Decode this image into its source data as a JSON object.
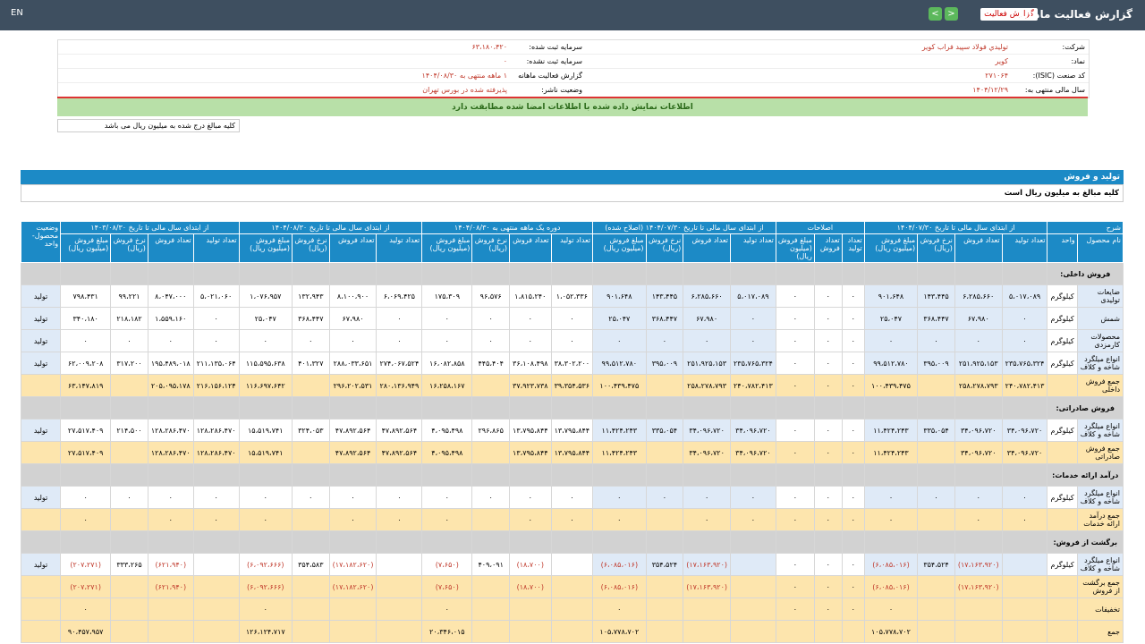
{
  "topbar": {
    "lang": "EN",
    "title": "گزارش فعالیت ماهانه",
    "dropdown": "گزارش فعالیت"
  },
  "info": {
    "rows": [
      [
        "شرکت:",
        "توليدي فولاد سپيد فراب كوير",
        "سرمایه ثبت شده:",
        "۶۳،۱۸۰،۴۲۰"
      ],
      [
        "نماد:",
        "کویر",
        "سرمایه ثبت نشده:",
        "۰"
      ],
      [
        "کد صنعت (ISIC):",
        "۲۷۱۰۶۴",
        "گزارش فعالیت ماهانه",
        "۱ ماهه منتهی به ۱۴۰۴/۰۸/۳۰"
      ],
      [
        "سال مالی منتهی به:",
        "۱۴۰۴/۱۲/۲۹",
        "وضعیت ناشر:",
        "پذیرفته شده در بورس تهران"
      ]
    ]
  },
  "banner": "اطلاعات نمایش داده شده با اطلاعات امضا شده مطابقت دارد",
  "note": "کلیه مبالغ درج شده به میلیون ریال می باشد",
  "section": {
    "title": "تولید و فروش",
    "subtitle": "کلیه مبالغ به میلیون ریال است"
  },
  "table": {
    "desc": "شرح",
    "name_col": "نام محصول",
    "unit_col": "واحد",
    "status_col": "وضعیت محصول- واحد",
    "groups": [
      {
        "title": "از ابتدای سال مالی تا تاریخ ۱۴۰۴/۰۷/۳۰",
        "columns": [
          "تعداد تولید",
          "تعداد فروش",
          "نرخ فروش (ریال)",
          "مبلغ فروش (میلیون ریال)"
        ]
      },
      {
        "title": "اصلاحات",
        "columns": [
          "تعداد تولید",
          "تعداد فروش",
          "مبلغ فروش (میلیون ریال)"
        ]
      },
      {
        "title": "از ابتدای سال مالی تا تاریخ ۱۴۰۴/۰۷/۳۰ (اصلاح شده)",
        "columns": [
          "تعداد تولید",
          "تعداد فروش",
          "نرخ فروش (ریال)",
          "مبلغ فروش (میلیون ریال)"
        ]
      },
      {
        "title": "دوره یک ماهه منتهی به ۱۴۰۴/۰۸/۳۰",
        "columns": [
          "تعداد تولید",
          "تعداد فروش",
          "نرخ فروش (ریال)",
          "مبلغ فروش (میلیون ریال)"
        ]
      },
      {
        "title": "از ابتدای سال مالی تا تاریخ ۱۴۰۴/۰۸/۳۰",
        "columns": [
          "تعداد تولید",
          "تعداد فروش",
          "نرخ فروش (ریال)",
          "مبلغ فروش (میلیون ریال)"
        ]
      },
      {
        "title": "از ابتدای سال مالی تا تاریخ ۱۴۰۳/۰۸/۳۰",
        "columns": [
          "تعداد تولید",
          "تعداد فروش",
          "نرخ فروش (ریال)",
          "مبلغ فروش (میلیون ریال)"
        ]
      }
    ],
    "rows": [
      [
        "فروش داخلی:"
      ],
      [
        "ضایعات تولیدی",
        "کیلوگرم",
        "۵،۰۱۷،۰۸۹",
        "۶،۲۸۵،۶۶۰",
        "۱۴۳،۴۴۵",
        "۹۰۱،۶۴۸",
        "۰",
        "۰",
        "۰",
        "۵،۰۱۷،۰۸۹",
        "۶،۲۸۵،۶۶۰",
        "۱۴۳،۴۴۵",
        "۹۰۱،۶۴۸",
        "۱،۰۵۲،۳۳۶",
        "۱،۸۱۵،۲۴۰",
        "۹۶،۵۷۶",
        "۱۷۵،۳۰۹",
        "۶،۰۶۹،۴۲۵",
        "۸،۱۰۰،۹۰۰",
        "۱۳۲،۹۴۳",
        "۱،۰۷۶،۹۵۷",
        "۵،۰۲۱،۰۶۰",
        "۸،۰۴۷،۰۰۰",
        "۹۹،۲۲۱",
        "۷۹۸،۴۳۱",
        "تولید"
      ],
      [
        "شمش",
        "کیلوگرم",
        "۰",
        "۶۷،۹۸۰",
        "۳۶۸،۴۴۷",
        "۲۵،۰۴۷",
        "۰",
        "۰",
        "۰",
        "۰",
        "۶۷،۹۸۰",
        "۳۶۸،۴۴۷",
        "۲۵،۰۴۷",
        "۰",
        "۰",
        "۰",
        "۰",
        "۰",
        "۶۷،۹۸۰",
        "۳۶۸،۴۴۷",
        "۲۵،۰۴۷",
        "۰",
        "۱،۵۵۹،۱۶۰",
        "۲۱۸،۱۸۲",
        "۳۴۰،۱۸۰",
        "تولید"
      ],
      [
        "محصولات کارمزدی",
        "کیلوگرم",
        "۰",
        "۰",
        "۰",
        "۰",
        "۰",
        "۰",
        "۰",
        "۰",
        "۰",
        "۰",
        "۰",
        "۰",
        "۰",
        "۰",
        "۰",
        "۰",
        "۰",
        "۰",
        "۰",
        "۰",
        "۰",
        "۰",
        "۰",
        "تولید"
      ],
      [
        "انواع میلگرد شاخه و کلاف",
        "کیلوگرم",
        "۲۳۵،۷۶۵،۳۲۴",
        "۲۵۱،۹۲۵،۱۵۳",
        "۳۹۵،۰۰۹",
        "۹۹،۵۱۲،۷۸۰",
        "۰",
        "۰",
        "۰",
        "۲۳۵،۷۶۵،۳۲۴",
        "۲۵۱،۹۲۵،۱۵۳",
        "۳۹۵،۰۰۹",
        "۹۹،۵۱۲،۷۸۰",
        "۳۸،۳۰۲،۲۰۰",
        "۳۶،۱۰۸،۴۹۸",
        "۴۴۵،۴۰۴",
        "۱۶،۰۸۲،۸۵۸",
        "۲۷۴،۰۶۷،۵۲۴",
        "۲۸۸،۰۳۳،۶۵۱",
        "۴۰۱،۳۲۷",
        "۱۱۵،۵۹۵،۶۳۸",
        "۲۱۱،۱۳۵،۰۶۴",
        "۱۹۵،۴۸۹،۰۱۸",
        "۳۱۷،۲۰۰",
        "۶۲،۰۰۹،۲۰۸",
        "تولید"
      ],
      [
        "جمع فروش داخلی",
        null,
        "۲۴۰،۷۸۲،۴۱۳",
        "۲۵۸،۲۷۸،۷۹۳",
        null,
        "۱۰۰،۴۳۹،۴۷۵",
        "۰",
        "۰",
        "۰",
        "۲۴۰،۷۸۲،۴۱۳",
        "۲۵۸،۲۷۸،۷۹۳",
        null,
        "۱۰۰،۴۳۹،۴۷۵",
        "۳۹،۳۵۴،۵۳۶",
        "۳۷،۹۲۳،۷۳۸",
        null,
        "۱۶،۲۵۸،۱۶۷",
        "۲۸۰،۱۳۶،۹۴۹",
        "۲۹۶،۲۰۲،۵۳۱",
        null,
        "۱۱۶،۶۹۷،۶۴۲",
        "۲۱۶،۱۵۶،۱۲۴",
        "۲۰۵،۰۹۵،۱۷۸",
        null,
        "۶۳،۱۴۷،۸۱۹",
        null
      ],
      [
        "فروش صادراتی:"
      ],
      [
        "انواع میلگرد شاخه و کلاف",
        "کیلوگرم",
        "۳۴،۰۹۶،۷۲۰",
        "۳۴،۰۹۶،۷۲۰",
        "۳۳۵،۰۵۴",
        "۱۱،۴۲۴،۲۴۳",
        "۰",
        "۰",
        "۰",
        "۳۴،۰۹۶،۷۲۰",
        "۳۴،۰۹۶،۷۲۰",
        "۳۳۵،۰۵۴",
        "۱۱،۴۲۴،۲۴۳",
        "۱۳،۷۹۵،۸۴۴",
        "۱۳،۷۹۵،۸۴۴",
        "۲۹۶،۸۶۵",
        "۴،۰۹۵،۴۹۸",
        "۴۷،۸۹۲،۵۶۴",
        "۴۷،۸۹۲،۵۶۴",
        "۳۲۴،۰۵۳",
        "۱۵،۵۱۹،۷۴۱",
        "۱۲۸،۲۸۶،۴۷۰",
        "۱۲۸،۲۸۶،۴۷۰",
        "۲۱۴،۵۰۰",
        "۲۷،۵۱۷،۴۰۹",
        "تولید"
      ],
      [
        "جمع فروش صادراتی",
        null,
        "۳۴،۰۹۶،۷۲۰",
        "۳۴،۰۹۶،۷۲۰",
        null,
        "۱۱،۴۲۴،۲۴۳",
        "۰",
        "۰",
        "۰",
        "۳۴،۰۹۶،۷۲۰",
        "۳۴،۰۹۶،۷۲۰",
        null,
        "۱۱،۴۲۴،۲۴۳",
        "۱۳،۷۹۵،۸۴۴",
        "۱۳،۷۹۵،۸۴۴",
        null,
        "۴،۰۹۵،۴۹۸",
        "۴۷،۸۹۲،۵۶۴",
        "۴۷،۸۹۲،۵۶۴",
        null,
        "۱۵،۵۱۹،۷۴۱",
        "۱۲۸،۲۸۶،۴۷۰",
        "۱۲۸،۲۸۶،۴۷۰",
        null,
        "۲۷،۵۱۷،۴۰۹",
        null
      ],
      [
        "درآمد ارائه خدمات:"
      ],
      [
        "انواع میلگرد شاخه و کلاف",
        "کیلوگرم",
        "۰",
        "۰",
        "۰",
        "۰",
        "۰",
        "۰",
        "۰",
        "۰",
        "۰",
        "۰",
        "۰",
        "۰",
        "۰",
        "۰",
        "۰",
        "۰",
        "۰",
        "۰",
        "۰",
        "۰",
        "۰",
        "۰",
        "۰",
        "تولید"
      ],
      [
        "جمع درآمد ارائه خدمات",
        null,
        "۰",
        "۰",
        null,
        "۰",
        "۰",
        "۰",
        "۰",
        "۰",
        "۰",
        null,
        "۰",
        "۰",
        "۰",
        null,
        "۰",
        "۰",
        "۰",
        null,
        "۰",
        "۰",
        "۰",
        null,
        "۰",
        null
      ],
      [
        "برگشت از فروش:"
      ],
      [
        "انواع میلگرد شاخه و کلاف",
        "کیلوگرم",
        null,
        "(۱۷،۱۶۳،۹۲۰)",
        "۳۵۴،۵۲۴",
        "(۶،۰۸۵،۰۱۶)",
        "۰",
        "۰",
        "۰",
        null,
        "(۱۷،۱۶۳،۹۲۰)",
        "۳۵۴،۵۲۴",
        "(۶،۰۸۵،۰۱۶)",
        null,
        "(۱۸،۷۰۰)",
        "۴۰۹،۰۹۱",
        "(۷،۶۵۰)",
        null,
        "(۱۷،۱۸۲،۶۲۰)",
        "۳۵۴،۵۸۳",
        "(۶،۰۹۲،۶۶۶)",
        null,
        "(۶۲۱،۹۴۰)",
        "۳۳۳،۲۶۵",
        "(۲۰۷،۲۷۱)",
        "تولید"
      ],
      [
        "جمع برگشت از فروش",
        null,
        null,
        "(۱۷،۱۶۳،۹۲۰)",
        null,
        "(۶،۰۸۵،۰۱۶)",
        "۰",
        "۰",
        "۰",
        null,
        "(۱۷،۱۶۳،۹۲۰)",
        null,
        "(۶،۰۸۵،۰۱۶)",
        null,
        "(۱۸،۷۰۰)",
        null,
        "(۷،۶۵۰)",
        null,
        "(۱۷،۱۸۲،۶۲۰)",
        null,
        "(۶،۰۹۲،۶۶۶)",
        null,
        "(۶۲۱،۹۴۰)",
        null,
        "(۲۰۷،۲۷۱)",
        null
      ],
      [
        "تخفیفات",
        null,
        null,
        null,
        null,
        "۰",
        "۰",
        "۰",
        "۰",
        null,
        null,
        null,
        "۰",
        null,
        null,
        null,
        "۰",
        null,
        null,
        null,
        "۰",
        null,
        null,
        null,
        "۰",
        null
      ],
      [
        "جمع",
        null,
        null,
        null,
        null,
        "۱۰۵،۷۷۸،۷۰۲",
        null,
        null,
        null,
        null,
        null,
        null,
        "۱۰۵،۷۷۸،۷۰۲",
        null,
        null,
        null,
        "۲۰،۳۴۶،۰۱۵",
        null,
        null,
        null,
        "۱۲۶،۱۲۴،۷۱۷",
        null,
        null,
        null,
        "۹۰،۴۵۷،۹۵۷",
        null
      ]
    ]
  }
}
